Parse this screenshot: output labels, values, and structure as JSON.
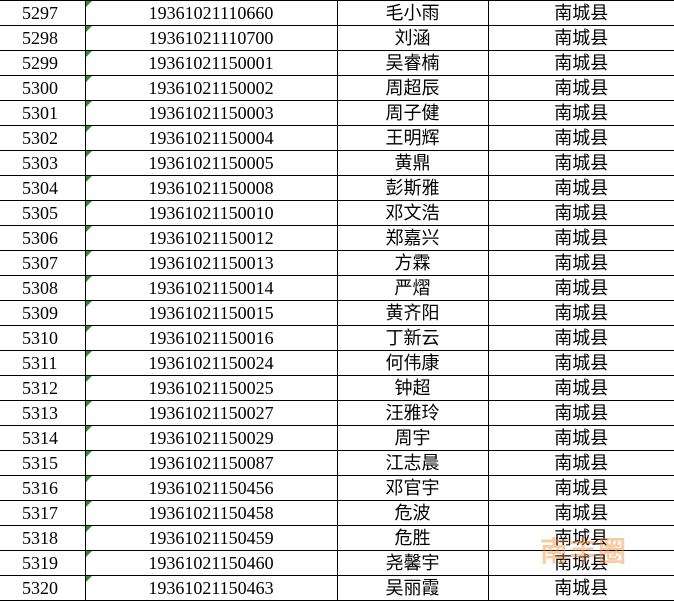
{
  "table": {
    "rows": [
      [
        "5297",
        "19361021110660",
        "毛小雨",
        "南城县"
      ],
      [
        "5298",
        "19361021110700",
        "刘涵",
        "南城县"
      ],
      [
        "5299",
        "19361021150001",
        "吴睿楠",
        "南城县"
      ],
      [
        "5300",
        "19361021150002",
        "周超辰",
        "南城县"
      ],
      [
        "5301",
        "19361021150003",
        "周子健",
        "南城县"
      ],
      [
        "5302",
        "19361021150004",
        "王明辉",
        "南城县"
      ],
      [
        "5303",
        "19361021150005",
        "黄鼎",
        "南城县"
      ],
      [
        "5304",
        "19361021150008",
        "彭斯雅",
        "南城县"
      ],
      [
        "5305",
        "19361021150010",
        "邓文浩",
        "南城县"
      ],
      [
        "5306",
        "19361021150012",
        "郑嘉兴",
        "南城县"
      ],
      [
        "5307",
        "19361021150013",
        "方霖",
        "南城县"
      ],
      [
        "5308",
        "19361021150014",
        "严熠",
        "南城县"
      ],
      [
        "5309",
        "19361021150015",
        "黄齐阳",
        "南城县"
      ],
      [
        "5310",
        "19361021150016",
        "丁新云",
        "南城县"
      ],
      [
        "5311",
        "19361021150024",
        "何伟康",
        "南城县"
      ],
      [
        "5312",
        "19361021150025",
        "钟超",
        "南城县"
      ],
      [
        "5313",
        "19361021150027",
        "汪雅玲",
        "南城县"
      ],
      [
        "5314",
        "19361021150029",
        "周宇",
        "南城县"
      ],
      [
        "5315",
        "19361021150087",
        "江志晨",
        "南城县"
      ],
      [
        "5316",
        "19361021150456",
        "邓官宇",
        "南城县"
      ],
      [
        "5317",
        "19361021150458",
        "危波",
        "南城县"
      ],
      [
        "5318",
        "19361021150459",
        "危胜",
        "南城县"
      ],
      [
        "5319",
        "19361021150460",
        "尧馨宇",
        "南城县"
      ],
      [
        "5320",
        "19361021150463",
        "吴丽霞",
        "南城县"
      ]
    ]
  },
  "watermark": "南丰圈"
}
